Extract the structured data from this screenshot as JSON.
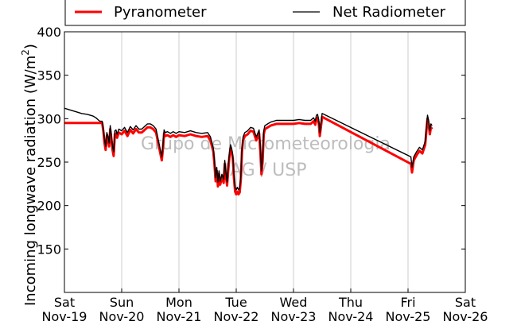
{
  "chart_data": {
    "type": "line",
    "ylabel_main": "Incoming longwave radiation (W/m",
    "ylabel_sup": "2",
    "ylabel_close": ")",
    "ylim": [
      100,
      400
    ],
    "yticks": [
      150,
      200,
      250,
      300,
      350,
      400
    ],
    "xlim": [
      "2014-11-19",
      "2014-11-26"
    ],
    "xticks": [
      {
        "day": "Sat",
        "date": "Nov-19"
      },
      {
        "day": "Sun",
        "date": "Nov-20"
      },
      {
        "day": "Mon",
        "date": "Nov-21"
      },
      {
        "day": "Tue",
        "date": "Nov-22"
      },
      {
        "day": "Wed",
        "date": "Nov-23"
      },
      {
        "day": "Thu",
        "date": "Nov-24"
      },
      {
        "day": "Fri",
        "date": "Nov-25"
      },
      {
        "day": "Sat",
        "date": "Nov-26"
      }
    ],
    "grid": "vertical",
    "legend": "top",
    "watermark": [
      "Grupo de Micrometeorologia",
      "IAG / USP"
    ],
    "series": [
      {
        "name": "Pyranometer",
        "color": "#ff0000",
        "x": [
          0.0,
          0.15,
          0.3,
          0.5,
          0.62,
          0.66,
          0.68,
          0.7,
          0.72,
          0.74,
          0.76,
          0.78,
          0.8,
          0.82,
          0.84,
          0.86,
          0.88,
          0.9,
          0.92,
          0.95,
          1.0,
          1.05,
          1.1,
          1.15,
          1.2,
          1.25,
          1.3,
          1.35,
          1.4,
          1.45,
          1.5,
          1.55,
          1.6,
          1.65,
          1.7,
          1.72,
          1.74,
          1.76,
          1.8,
          1.85,
          1.9,
          1.95,
          2.0,
          2.1,
          2.2,
          2.3,
          2.4,
          2.5,
          2.55,
          2.6,
          2.62,
          2.64,
          2.66,
          2.68,
          2.7,
          2.72,
          2.75,
          2.78,
          2.8,
          2.82,
          2.84,
          2.86,
          2.88,
          2.9,
          2.92,
          2.94,
          2.96,
          2.98,
          3.0,
          3.02,
          3.04,
          3.06,
          3.08,
          3.1,
          3.12,
          3.15,
          3.2,
          3.25,
          3.3,
          3.35,
          3.4,
          3.42,
          3.44,
          3.46,
          3.48,
          3.5,
          3.55,
          3.6,
          3.7,
          3.8,
          3.9,
          4.0,
          4.1,
          4.2,
          4.3,
          4.35,
          4.38,
          4.4,
          4.42,
          4.44,
          4.46,
          4.5,
          6.05,
          6.07,
          6.1,
          6.15,
          6.2,
          6.25,
          6.3,
          6.32,
          6.34,
          6.36,
          6.38,
          6.4,
          6.42
        ],
        "y": [
          295,
          295,
          295,
          295,
          295,
          295,
          285,
          272,
          264,
          280,
          276,
          268,
          288,
          277,
          264,
          257,
          282,
          283,
          278,
          284,
          282,
          286,
          280,
          287,
          283,
          288,
          284,
          284,
          287,
          290,
          290,
          288,
          284,
          268,
          252,
          265,
          283,
          280,
          281,
          279,
          281,
          279,
          281,
          280,
          282,
          280,
          279,
          280,
          275,
          262,
          248,
          228,
          240,
          222,
          236,
          224,
          232,
          226,
          248,
          234,
          223,
          240,
          256,
          266,
          262,
          254,
          232,
          216,
          213,
          216,
          213,
          215,
          230,
          262,
          275,
          280,
          282,
          286,
          285,
          275,
          283,
          265,
          236,
          250,
          282,
          288,
          290,
          292,
          294,
          294,
          294,
          294,
          295,
          294,
          294,
          297,
          293,
          300,
          301,
          295,
          280,
          302,
          248,
          238,
          252,
          258,
          263,
          260,
          270,
          285,
          300,
          294,
          282,
          290,
          288
        ]
      },
      {
        "name": "Net Radiometer",
        "color": "#000000",
        "x": [
          0.0,
          0.1,
          0.2,
          0.3,
          0.4,
          0.5,
          0.55,
          0.6,
          0.62,
          0.66,
          0.68,
          0.7,
          0.72,
          0.74,
          0.76,
          0.78,
          0.8,
          0.82,
          0.84,
          0.86,
          0.88,
          0.9,
          0.92,
          0.95,
          1.0,
          1.05,
          1.1,
          1.15,
          1.2,
          1.25,
          1.3,
          1.35,
          1.4,
          1.45,
          1.5,
          1.55,
          1.6,
          1.65,
          1.7,
          1.72,
          1.74,
          1.76,
          1.8,
          1.85,
          1.9,
          1.95,
          2.0,
          2.1,
          2.2,
          2.3,
          2.4,
          2.5,
          2.55,
          2.6,
          2.62,
          2.64,
          2.66,
          2.68,
          2.7,
          2.72,
          2.75,
          2.78,
          2.8,
          2.82,
          2.84,
          2.86,
          2.88,
          2.9,
          2.92,
          2.94,
          2.96,
          2.98,
          3.0,
          3.02,
          3.04,
          3.06,
          3.08,
          3.1,
          3.12,
          3.15,
          3.2,
          3.25,
          3.3,
          3.35,
          3.4,
          3.42,
          3.44,
          3.46,
          3.48,
          3.5,
          3.55,
          3.6,
          3.7,
          3.8,
          3.9,
          4.0,
          4.1,
          4.2,
          4.3,
          4.35,
          4.38,
          4.4,
          4.42,
          4.44,
          4.46,
          4.5,
          6.05,
          6.07,
          6.1,
          6.15,
          6.2,
          6.25,
          6.3,
          6.32,
          6.34,
          6.36,
          6.38,
          6.4,
          6.42
        ],
        "y": [
          312,
          310,
          308,
          306,
          305,
          303,
          301,
          298,
          297,
          297,
          288,
          276,
          268,
          284,
          280,
          272,
          292,
          281,
          268,
          262,
          286,
          287,
          282,
          288,
          286,
          290,
          284,
          291,
          287,
          292,
          288,
          288,
          291,
          294,
          294,
          292,
          288,
          272,
          256,
          269,
          287,
          284,
          285,
          283,
          285,
          283,
          285,
          284,
          286,
          284,
          283,
          284,
          279,
          266,
          252,
          232,
          244,
          227,
          240,
          228,
          236,
          230,
          252,
          238,
          227,
          244,
          260,
          270,
          266,
          258,
          236,
          221,
          218,
          221,
          218,
          220,
          234,
          266,
          279,
          284,
          286,
          290,
          289,
          279,
          287,
          269,
          240,
          254,
          286,
          292,
          294,
          296,
          298,
          298,
          298,
          298,
          299,
          298,
          298,
          301,
          297,
          304,
          305,
          299,
          284,
          306,
          256,
          244,
          256,
          262,
          267,
          264,
          274,
          289,
          304,
          298,
          286,
          294,
          292
        ]
      }
    ]
  }
}
